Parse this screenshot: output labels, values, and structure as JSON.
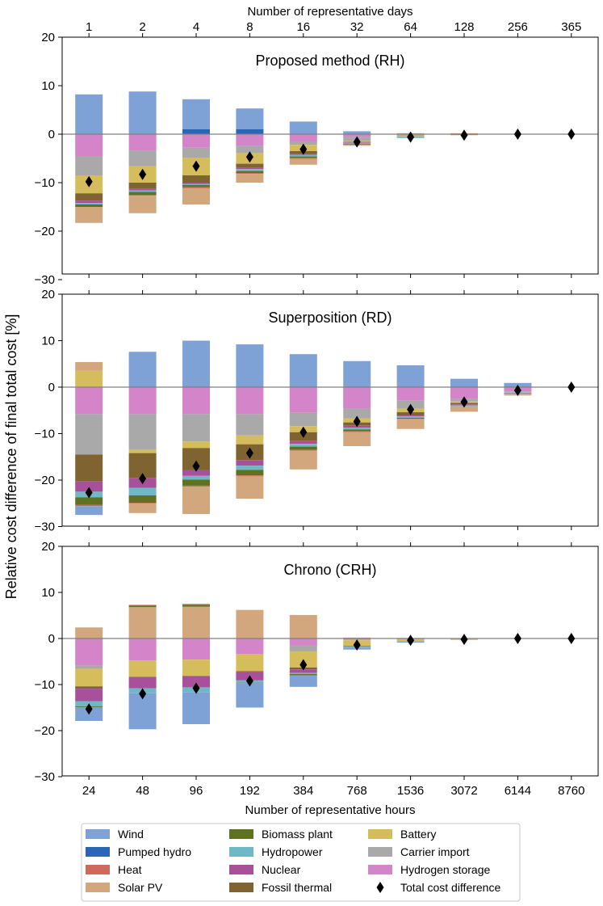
{
  "figure": {
    "top_axis_label": "Number of representative days",
    "bottom_axis_label": "Number of representative hours",
    "y_axis_label": "Relative cost difference of final total cost [%]"
  },
  "colors": {
    "Wind": "#7ea1d6",
    "Pumped hydro": "#2b65b8",
    "Heat": "#cd6a5b",
    "Solar PV": "#d2a77e",
    "Biomass plant": "#5f721f",
    "Hydropower": "#6fb9c7",
    "Nuclear": "#a8509a",
    "Fossil thermal": "#7f6432",
    "Battery": "#d6bd5c",
    "Carrier import": "#a9a9a9",
    "Hydrogen storage": "#d484c8"
  },
  "chart_data": [
    {
      "type": "bar",
      "stacked": true,
      "title": "Proposed method (RH)",
      "categories": [
        "24",
        "48",
        "96",
        "192",
        "384",
        "768",
        "1536",
        "3072",
        "6144",
        "8760"
      ],
      "top_categories": [
        "1",
        "2",
        "4",
        "8",
        "16",
        "32",
        "64",
        "128",
        "256",
        "365"
      ],
      "ylim": [
        -30,
        20
      ],
      "yticks": [
        20,
        10,
        0,
        -10,
        -20,
        -30
      ],
      "ytick_labels": [
        "20",
        "10",
        "0",
        "−10",
        "−20",
        "−30"
      ],
      "positive_order": [
        "Solar PV",
        "Heat",
        "Pumped hydro",
        "Wind"
      ],
      "negative_order": [
        "Hydrogen storage",
        "Carrier import",
        "Battery",
        "Fossil thermal",
        "Nuclear",
        "Hydropower",
        "Biomass plant",
        "Heat",
        "Solar PV",
        "Wind"
      ],
      "series": [
        {
          "name": "Wind",
          "values": [
            8.2,
            8.8,
            6.2,
            4.3,
            2.6,
            0.6,
            0.0,
            0.0,
            0.0,
            0.0
          ]
        },
        {
          "name": "Pumped hydro",
          "values": [
            0.0,
            0.0,
            1.0,
            1.0,
            0.0,
            0.0,
            0.0,
            0.0,
            0.0,
            0.0
          ]
        },
        {
          "name": "Heat",
          "values": [
            0.0,
            -0.2,
            -0.3,
            -0.2,
            -0.2,
            -0.1,
            0.0,
            -0.1,
            0.0,
            0.0
          ]
        },
        {
          "name": "Solar PV",
          "values": [
            -3.3,
            -3.6,
            -3.3,
            -1.8,
            -1.2,
            -0.2,
            0.2,
            0.2,
            0.0,
            0.0
          ]
        },
        {
          "name": "Biomass plant",
          "values": [
            -0.5,
            -0.6,
            -0.4,
            -0.4,
            -0.3,
            -0.1,
            0.0,
            0.0,
            0.0,
            0.0
          ]
        },
        {
          "name": "Hydropower",
          "values": [
            -0.3,
            -0.3,
            -0.2,
            -0.4,
            -0.3,
            -0.2,
            -0.3,
            0.0,
            0.0,
            0.0
          ]
        },
        {
          "name": "Nuclear",
          "values": [
            -0.5,
            -0.3,
            -0.3,
            -0.3,
            -0.2,
            -0.1,
            0.0,
            0.0,
            0.0,
            0.0
          ]
        },
        {
          "name": "Fossil thermal",
          "values": [
            -1.5,
            -1.3,
            -1.5,
            -0.8,
            -0.6,
            -0.1,
            0.0,
            0.0,
            0.0,
            0.0
          ]
        },
        {
          "name": "Battery",
          "values": [
            -3.7,
            -3.4,
            -3.6,
            -2.2,
            -1.3,
            -0.2,
            -0.1,
            0.0,
            0.0,
            0.0
          ]
        },
        {
          "name": "Carrier import",
          "values": [
            -4.0,
            -3.2,
            -2.1,
            -1.5,
            -0.7,
            -0.8,
            -0.3,
            0.0,
            0.0,
            0.0
          ]
        },
        {
          "name": "Hydrogen storage",
          "values": [
            -4.5,
            -3.4,
            -2.8,
            -2.4,
            -1.5,
            -0.6,
            -0.1,
            -0.1,
            0.0,
            0.0
          ]
        }
      ],
      "total": [
        -9.8,
        -8.3,
        -6.6,
        -4.7,
        -3.1,
        -1.6,
        -0.6,
        -0.2,
        0.0,
        0.0
      ]
    },
    {
      "type": "bar",
      "stacked": true,
      "title": "Superposition (RD)",
      "categories": [
        "24",
        "48",
        "96",
        "192",
        "384",
        "768",
        "1536",
        "3072",
        "6144",
        "8760"
      ],
      "ylim": [
        -30,
        20
      ],
      "yticks": [
        20,
        10,
        0,
        -10,
        -20,
        -30
      ],
      "ytick_labels": [
        "20",
        "10",
        "0",
        "−10",
        "−20",
        "−30"
      ],
      "positive_order": [
        "Battery",
        "Solar PV",
        "Wind"
      ],
      "negative_order": [
        "Hydrogen storage",
        "Carrier import",
        "Battery",
        "Fossil thermal",
        "Nuclear",
        "Hydropower",
        "Biomass plant",
        "Heat",
        "Solar PV",
        "Wind"
      ],
      "series": [
        {
          "name": "Wind",
          "values": [
            -1.9,
            7.6,
            10.0,
            9.2,
            7.1,
            5.6,
            4.7,
            1.8,
            0.9,
            0.0
          ]
        },
        {
          "name": "Heat",
          "values": [
            -0.3,
            -0.2,
            -0.2,
            -0.2,
            -0.2,
            -0.2,
            -0.1,
            0.0,
            0.0,
            0.0
          ]
        },
        {
          "name": "Solar PV",
          "values": [
            1.9,
            -2.0,
            -5.9,
            -4.8,
            -4.0,
            -3.0,
            -2.1,
            -1.2,
            -0.4,
            0.0
          ]
        },
        {
          "name": "Biomass plant",
          "values": [
            -1.6,
            -1.6,
            -1.3,
            -1.2,
            -0.7,
            -0.4,
            -0.2,
            0.0,
            0.0,
            0.0
          ]
        },
        {
          "name": "Hydropower",
          "values": [
            -1.2,
            -1.6,
            -0.8,
            -0.9,
            -0.6,
            -0.4,
            -0.3,
            -0.2,
            -0.1,
            0.0
          ]
        },
        {
          "name": "Nuclear",
          "values": [
            -2.2,
            -2.2,
            -1.2,
            -1.2,
            -0.6,
            -0.4,
            -0.2,
            -0.2,
            -0.1,
            0.0
          ]
        },
        {
          "name": "Fossil thermal",
          "values": [
            -5.8,
            -5.3,
            -4.8,
            -3.4,
            -1.9,
            -0.7,
            -0.7,
            -0.3,
            0.0,
            0.0
          ]
        },
        {
          "name": "Battery",
          "values": [
            3.5,
            -0.7,
            -1.4,
            -1.9,
            -1.3,
            -0.9,
            -0.8,
            -0.3,
            -0.1,
            0.0
          ]
        },
        {
          "name": "Carrier import",
          "values": [
            -8.7,
            -7.7,
            -5.9,
            -4.6,
            -2.9,
            -2.1,
            -1.7,
            -0.6,
            -0.2,
            0.0
          ]
        },
        {
          "name": "Hydrogen storage",
          "values": [
            -5.8,
            -5.8,
            -5.8,
            -5.8,
            -5.5,
            -4.6,
            -2.9,
            -2.5,
            -0.9,
            0.0
          ]
        }
      ],
      "total": [
        -22.7,
        -19.7,
        -17.0,
        -14.2,
        -9.7,
        -7.4,
        -4.8,
        -3.2,
        -0.7,
        0.0
      ]
    },
    {
      "type": "bar",
      "stacked": true,
      "title": "Chrono (CRH)",
      "categories": [
        "24",
        "48",
        "96",
        "192",
        "384",
        "768",
        "1536",
        "3072",
        "6144",
        "8760"
      ],
      "xlabel": "Number of representative hours",
      "ylim": [
        -30,
        20
      ],
      "yticks": [
        20,
        10,
        0,
        -10,
        -20,
        -30
      ],
      "ytick_labels": [
        "20",
        "10",
        "0",
        "−10",
        "−20",
        "−30"
      ],
      "positive_order": [
        "Solar PV",
        "Biomass plant",
        "Battery",
        "Heat"
      ],
      "negative_order": [
        "Hydrogen storage",
        "Carrier import",
        "Battery",
        "Fossil thermal",
        "Nuclear",
        "Hydropower",
        "Biomass plant",
        "Heat",
        "Solar PV",
        "Wind"
      ],
      "series": [
        {
          "name": "Wind",
          "values": [
            -3.0,
            -7.8,
            -6.9,
            -5.3,
            -2.5,
            -0.4,
            -0.2,
            0.0,
            0.0,
            0.0
          ]
        },
        {
          "name": "Heat",
          "values": [
            0.0,
            0.2,
            0.2,
            0.0,
            0.0,
            0.0,
            0.0,
            0.0,
            0.0,
            0.0
          ]
        },
        {
          "name": "Solar PV",
          "values": [
            2.4,
            6.8,
            6.9,
            6.2,
            5.1,
            0.2,
            0.1,
            -0.2,
            0.0,
            0.0
          ]
        },
        {
          "name": "Biomass plant",
          "values": [
            -0.2,
            0.3,
            0.4,
            -0.1,
            -0.3,
            0.0,
            0.0,
            0.0,
            0.0,
            0.0
          ]
        },
        {
          "name": "Hydropower",
          "values": [
            -1.1,
            -1.1,
            -1.1,
            -0.5,
            -0.2,
            -0.2,
            -0.1,
            0.0,
            0.0,
            0.0
          ]
        },
        {
          "name": "Nuclear",
          "values": [
            -2.7,
            -2.4,
            -2.4,
            -1.9,
            -0.8,
            -0.1,
            0.0,
            0.0,
            0.0,
            0.0
          ]
        },
        {
          "name": "Fossil thermal",
          "values": [
            -0.5,
            -0.1,
            -0.1,
            -0.1,
            -0.4,
            -0.1,
            0.0,
            0.0,
            0.0,
            0.0
          ]
        },
        {
          "name": "Battery",
          "values": [
            -3.8,
            -3.5,
            -3.5,
            -3.7,
            -3.5,
            -1.2,
            -0.4,
            -0.1,
            0.0,
            0.0
          ]
        },
        {
          "name": "Carrier import",
          "values": [
            -0.8,
            0.0,
            0.0,
            0.0,
            -1.3,
            -0.2,
            0.0,
            0.0,
            0.0,
            0.0
          ]
        },
        {
          "name": "Hydrogen storage",
          "values": [
            -5.8,
            -4.8,
            -4.6,
            -3.4,
            -1.5,
            -0.2,
            -0.2,
            0.0,
            0.0,
            0.0
          ]
        }
      ],
      "total": [
        -15.3,
        -12.0,
        -10.8,
        -9.2,
        -5.7,
        -1.4,
        -0.4,
        -0.2,
        0.0,
        0.0
      ]
    }
  ],
  "legend": {
    "items": [
      "Wind",
      "Pumped hydro",
      "Heat",
      "Solar PV",
      "Biomass plant",
      "Hydropower",
      "Nuclear",
      "Fossil thermal",
      "Battery",
      "Carrier import",
      "Hydrogen storage"
    ],
    "total_label": "Total cost difference"
  }
}
